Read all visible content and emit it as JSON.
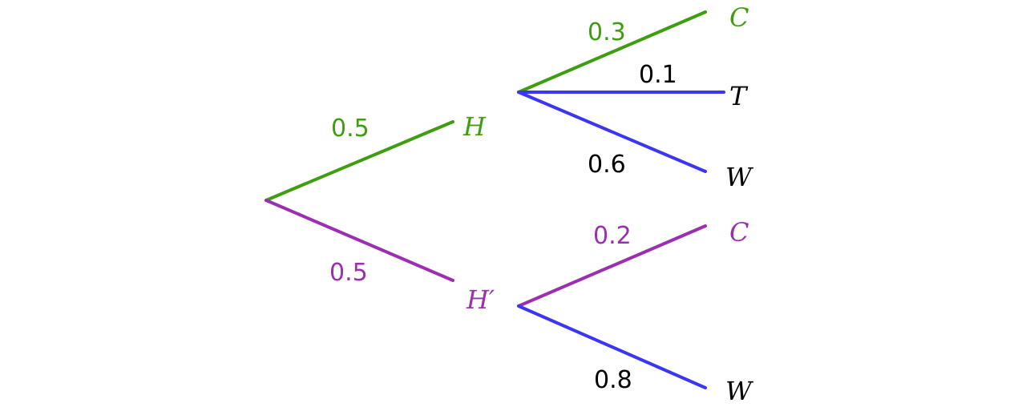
{
  "colors": {
    "green": "#3f9e0f",
    "purple": "#9b2fb0",
    "blue": "#3b35f5",
    "black": "#000000"
  },
  "nodes": {
    "h": {
      "label": "H",
      "color": "green"
    },
    "h_prime": {
      "label": "H′",
      "color": "purple"
    },
    "h_c": {
      "label": "C",
      "color": "green"
    },
    "h_t": {
      "label": "T",
      "color": "black"
    },
    "h_w": {
      "label": "W",
      "color": "black"
    },
    "hp_c": {
      "label": "C",
      "color": "purple"
    },
    "hp_w": {
      "label": "W",
      "color": "black"
    }
  },
  "branches": {
    "root_h": {
      "prob": "0.5",
      "line_color": "green",
      "text_color": "green"
    },
    "root_hp": {
      "prob": "0.5",
      "line_color": "purple",
      "text_color": "purple"
    },
    "h_c": {
      "prob": "0.3",
      "line_color": "green",
      "text_color": "green"
    },
    "h_t": {
      "prob": "0.1",
      "line_color": "blue",
      "text_color": "black"
    },
    "h_w": {
      "prob": "0.6",
      "line_color": "blue",
      "text_color": "black"
    },
    "hp_c": {
      "prob": "0.2",
      "line_color": "purple",
      "text_color": "purple"
    },
    "hp_w": {
      "prob": "0.8",
      "line_color": "blue",
      "text_color": "black"
    }
  }
}
